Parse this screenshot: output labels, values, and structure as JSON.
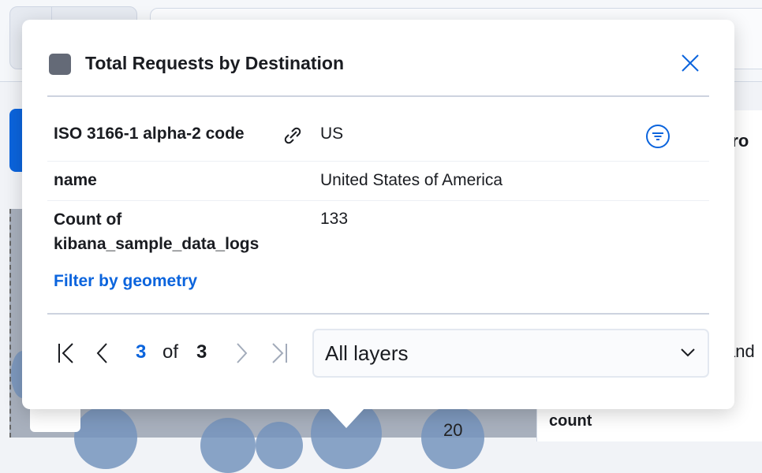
{
  "popover": {
    "title": "Total Requests by Destination",
    "swatch_color": "#646a77",
    "rows": [
      {
        "key": "ISO 3166-1 alpha-2 code",
        "value": "US",
        "has_link_icon": true,
        "has_filter_icon": true
      },
      {
        "key": "name",
        "value": "United States of America"
      },
      {
        "key": "Count of kibana_sample_data_logs",
        "value": "133"
      }
    ],
    "filter_link": "Filter by geometry",
    "pager": {
      "current": "3",
      "of": "of",
      "total": "3"
    },
    "layer_select": "All layers"
  },
  "background": {
    "right_text_1": "fro",
    "right_text_2": "and",
    "right_text_3": "count",
    "map_label": "20"
  }
}
